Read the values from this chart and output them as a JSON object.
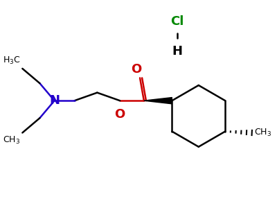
{
  "bg_color": "#ffffff",
  "bond_color": "#000000",
  "N_color": "#2200cc",
  "O_color": "#cc0000",
  "Cl_color": "#008800",
  "line_width": 1.8,
  "figsize": [
    4.0,
    3.0
  ],
  "dpi": 100,
  "xlim": [
    0,
    10
  ],
  "ylim": [
    0,
    7.5
  ]
}
